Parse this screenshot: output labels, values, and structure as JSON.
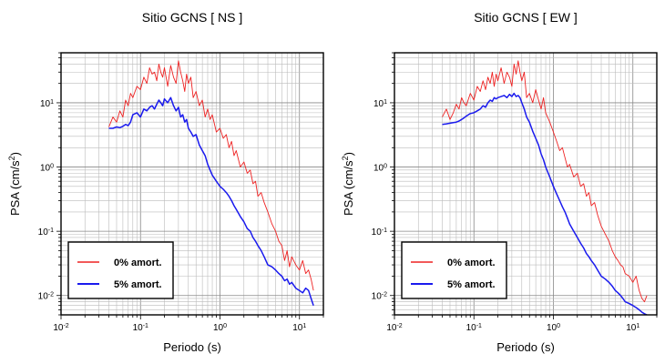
{
  "colors": {
    "undamped": "#ee2222",
    "damped": "#1a1aee",
    "grid": "#bbbbbb"
  },
  "chart_data": [
    {
      "type": "line",
      "title": "Sitio GCNS [ NS ]",
      "xlabel": "Periodo (s)",
      "ylabel": "PSA (cm/s²)",
      "ylabel_base": "PSA (cm/s",
      "ylabel_sup": "2",
      "ylabel_close": ")",
      "xscale": "log",
      "yscale": "log",
      "xlim": [
        0.01,
        20
      ],
      "ylim": [
        0.005,
        60
      ],
      "grid": true,
      "legend_position": "bottom-left",
      "x_ticks": [
        {
          "base": "10",
          "exp": "-2"
        },
        {
          "base": "10",
          "exp": "-1"
        },
        {
          "base": "10",
          "exp": "0"
        },
        {
          "base": "10",
          "exp": "1"
        }
      ],
      "y_ticks": [
        {
          "base": "10",
          "exp": "-2"
        },
        {
          "base": "10",
          "exp": "-1"
        },
        {
          "base": "10",
          "exp": "0"
        },
        {
          "base": "10",
          "exp": "1"
        }
      ],
      "series": [
        {
          "name": "0% amort.",
          "color": "#ee2222",
          "x": [
            0.04,
            0.045,
            0.05,
            0.055,
            0.06,
            0.065,
            0.07,
            0.075,
            0.08,
            0.09,
            0.1,
            0.11,
            0.12,
            0.13,
            0.14,
            0.15,
            0.16,
            0.17,
            0.18,
            0.19,
            0.2,
            0.22,
            0.24,
            0.26,
            0.28,
            0.3,
            0.32,
            0.34,
            0.36,
            0.38,
            0.4,
            0.43,
            0.46,
            0.5,
            0.55,
            0.6,
            0.65,
            0.7,
            0.75,
            0.8,
            0.9,
            1.0,
            1.1,
            1.2,
            1.3,
            1.4,
            1.5,
            1.6,
            1.8,
            2.0,
            2.2,
            2.4,
            2.6,
            2.8,
            3.0,
            3.3,
            3.6,
            4.0,
            4.5,
            5.0,
            5.5,
            6.0,
            6.5,
            7.0,
            7.5,
            8.0,
            9.0,
            10.0,
            11.0,
            12.0,
            13.0,
            14.0,
            15.0
          ],
          "y": [
            4.2,
            6.0,
            5.0,
            7.5,
            6.0,
            11.0,
            9.0,
            14.0,
            12.0,
            18.0,
            16.0,
            25.0,
            20.0,
            35.0,
            28.0,
            30.0,
            22.0,
            40.0,
            30.0,
            25.0,
            35.0,
            18.0,
            38.0,
            25.0,
            20.0,
            45.0,
            30.0,
            22.0,
            15.0,
            28.0,
            20.0,
            25.0,
            12.0,
            15.0,
            9.0,
            11.0,
            6.0,
            8.0,
            5.5,
            6.5,
            3.5,
            4.0,
            2.8,
            3.2,
            2.0,
            2.5,
            1.5,
            1.8,
            1.0,
            1.2,
            0.8,
            0.9,
            0.55,
            0.6,
            0.35,
            0.4,
            0.28,
            0.2,
            0.13,
            0.1,
            0.07,
            0.06,
            0.035,
            0.05,
            0.028,
            0.04,
            0.03,
            0.025,
            0.035,
            0.022,
            0.025,
            0.018,
            0.012
          ]
        },
        {
          "name": "5% amort.",
          "color": "#1a1aee",
          "x": [
            0.04,
            0.045,
            0.05,
            0.055,
            0.06,
            0.065,
            0.07,
            0.075,
            0.08,
            0.09,
            0.1,
            0.11,
            0.12,
            0.13,
            0.14,
            0.15,
            0.16,
            0.17,
            0.18,
            0.19,
            0.2,
            0.22,
            0.24,
            0.26,
            0.28,
            0.3,
            0.32,
            0.34,
            0.36,
            0.38,
            0.4,
            0.43,
            0.46,
            0.5,
            0.55,
            0.6,
            0.65,
            0.7,
            0.75,
            0.8,
            0.9,
            1.0,
            1.1,
            1.2,
            1.3,
            1.4,
            1.5,
            1.6,
            1.8,
            2.0,
            2.2,
            2.4,
            2.6,
            2.8,
            3.0,
            3.3,
            3.6,
            4.0,
            4.5,
            5.0,
            5.5,
            6.0,
            6.5,
            7.0,
            7.5,
            8.0,
            9.0,
            10.0,
            11.0,
            12.0,
            13.0,
            14.0,
            15.0
          ],
          "y": [
            4.0,
            4.0,
            4.2,
            4.1,
            4.3,
            4.6,
            4.4,
            5.0,
            6.5,
            7.0,
            6.0,
            8.0,
            7.5,
            8.5,
            9.0,
            8.0,
            9.5,
            11.0,
            10.0,
            9.0,
            11.5,
            10.0,
            12.0,
            9.0,
            7.5,
            8.5,
            6.0,
            6.5,
            5.0,
            5.5,
            4.0,
            3.5,
            3.0,
            3.2,
            2.2,
            1.8,
            1.5,
            1.1,
            0.9,
            0.75,
            0.6,
            0.5,
            0.45,
            0.4,
            0.35,
            0.3,
            0.25,
            0.22,
            0.17,
            0.14,
            0.11,
            0.1,
            0.08,
            0.07,
            0.06,
            0.05,
            0.04,
            0.03,
            0.028,
            0.025,
            0.022,
            0.02,
            0.017,
            0.018,
            0.015,
            0.016,
            0.013,
            0.012,
            0.011,
            0.013,
            0.012,
            0.009,
            0.007
          ]
        }
      ]
    },
    {
      "type": "line",
      "title": "Sitio GCNS [ EW ]",
      "xlabel": "Periodo (s)",
      "ylabel": "PSA (cm/s²)",
      "ylabel_base": "PSA (cm/s",
      "ylabel_sup": "2",
      "ylabel_close": ")",
      "xscale": "log",
      "yscale": "log",
      "xlim": [
        0.01,
        20
      ],
      "ylim": [
        0.005,
        60
      ],
      "grid": true,
      "legend_position": "bottom-left",
      "x_ticks": [
        {
          "base": "10",
          "exp": "-2"
        },
        {
          "base": "10",
          "exp": "-1"
        },
        {
          "base": "10",
          "exp": "0"
        },
        {
          "base": "10",
          "exp": "1"
        }
      ],
      "y_ticks": [
        {
          "base": "10",
          "exp": "-2"
        },
        {
          "base": "10",
          "exp": "-1"
        },
        {
          "base": "10",
          "exp": "0"
        },
        {
          "base": "10",
          "exp": "1"
        }
      ],
      "series": [
        {
          "name": "0% amort.",
          "color": "#ee2222",
          "x": [
            0.04,
            0.045,
            0.05,
            0.055,
            0.06,
            0.065,
            0.07,
            0.075,
            0.08,
            0.09,
            0.1,
            0.11,
            0.12,
            0.13,
            0.14,
            0.15,
            0.16,
            0.17,
            0.18,
            0.19,
            0.2,
            0.22,
            0.24,
            0.26,
            0.28,
            0.3,
            0.32,
            0.34,
            0.36,
            0.38,
            0.4,
            0.43,
            0.46,
            0.5,
            0.55,
            0.6,
            0.65,
            0.7,
            0.75,
            0.8,
            0.9,
            1.0,
            1.1,
            1.2,
            1.3,
            1.4,
            1.5,
            1.6,
            1.8,
            2.0,
            2.2,
            2.4,
            2.6,
            2.8,
            3.0,
            3.3,
            3.6,
            4.0,
            4.5,
            5.0,
            5.5,
            6.0,
            6.5,
            7.0,
            7.5,
            8.0,
            9.0,
            10.0,
            11.0,
            12.0,
            13.0,
            14.0,
            15.0
          ],
          "y": [
            6.0,
            8.0,
            5.5,
            7.0,
            9.5,
            8.0,
            12.0,
            10.0,
            9.0,
            14.0,
            11.0,
            18.0,
            15.0,
            22.0,
            16.0,
            25.0,
            20.0,
            30.0,
            18.0,
            28.0,
            22.0,
            35.0,
            20.0,
            30.0,
            25.0,
            18.0,
            40.0,
            28.0,
            45.0,
            30.0,
            22.0,
            30.0,
            12.0,
            14.0,
            10.0,
            16.0,
            11.0,
            8.0,
            12.0,
            7.0,
            5.0,
            3.5,
            2.5,
            1.8,
            2.0,
            1.4,
            1.0,
            1.1,
            0.7,
            0.8,
            0.5,
            0.55,
            0.35,
            0.4,
            0.25,
            0.28,
            0.18,
            0.12,
            0.09,
            0.07,
            0.05,
            0.04,
            0.035,
            0.03,
            0.028,
            0.022,
            0.02,
            0.016,
            0.02,
            0.012,
            0.009,
            0.008,
            0.01
          ]
        },
        {
          "name": "5% amort.",
          "color": "#1a1aee",
          "x": [
            0.04,
            0.045,
            0.05,
            0.055,
            0.06,
            0.065,
            0.07,
            0.075,
            0.08,
            0.09,
            0.1,
            0.11,
            0.12,
            0.13,
            0.14,
            0.15,
            0.16,
            0.17,
            0.18,
            0.19,
            0.2,
            0.22,
            0.24,
            0.26,
            0.28,
            0.3,
            0.32,
            0.34,
            0.36,
            0.38,
            0.4,
            0.43,
            0.46,
            0.5,
            0.55,
            0.6,
            0.65,
            0.7,
            0.75,
            0.8,
            0.9,
            1.0,
            1.1,
            1.2,
            1.3,
            1.4,
            1.5,
            1.6,
            1.8,
            2.0,
            2.2,
            2.4,
            2.6,
            2.8,
            3.0,
            3.3,
            3.6,
            4.0,
            4.5,
            5.0,
            5.5,
            6.0,
            6.5,
            7.0,
            7.5,
            8.0,
            9.0,
            10.0,
            11.0,
            12.0,
            13.0,
            14.0,
            15.0
          ],
          "y": [
            4.6,
            4.7,
            4.8,
            4.9,
            5.0,
            5.2,
            5.5,
            5.8,
            6.2,
            6.8,
            7.0,
            7.5,
            8.0,
            9.0,
            8.5,
            10.0,
            11.0,
            10.5,
            12.0,
            11.5,
            12.0,
            12.5,
            13.0,
            12.0,
            13.5,
            12.5,
            14.0,
            12.5,
            13.0,
            12.0,
            10.0,
            8.0,
            6.0,
            5.0,
            3.6,
            2.8,
            2.2,
            1.6,
            1.3,
            1.0,
            0.7,
            0.5,
            0.38,
            0.3,
            0.24,
            0.2,
            0.16,
            0.13,
            0.1,
            0.08,
            0.065,
            0.055,
            0.045,
            0.04,
            0.035,
            0.03,
            0.025,
            0.02,
            0.018,
            0.016,
            0.014,
            0.012,
            0.011,
            0.01,
            0.009,
            0.008,
            0.0075,
            0.007,
            0.0065,
            0.006,
            0.0055,
            0.0052,
            0.005
          ]
        }
      ]
    }
  ]
}
